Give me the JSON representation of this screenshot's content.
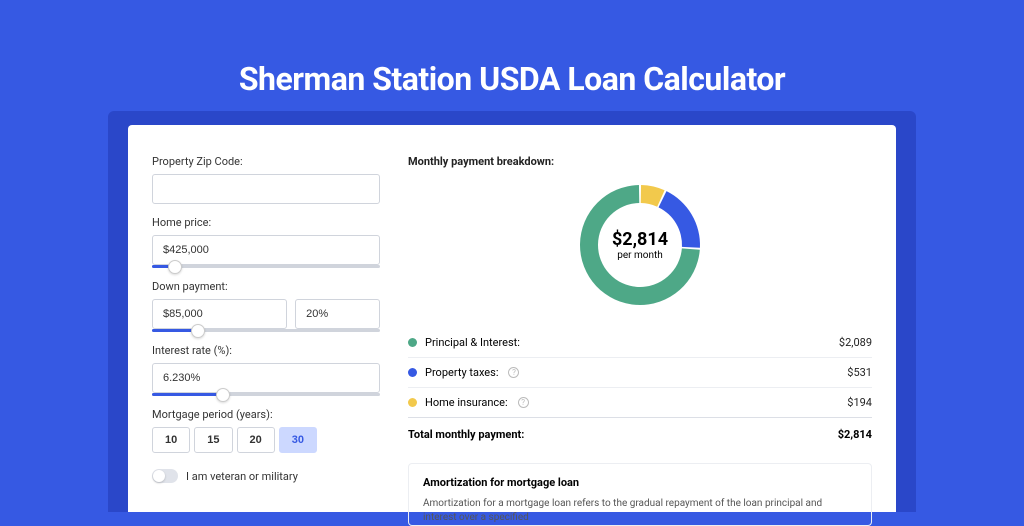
{
  "colors": {
    "page_bg": "#3659E3",
    "card_bg": "#ffffff",
    "shadow_bg": "#2a47c9",
    "border": "#d0d4dc",
    "slider_fill": "#3659E3",
    "active_btn_bg": "#ccd8ff",
    "active_btn_text": "#3659E3",
    "series_principal": "#4ea887",
    "series_taxes": "#3659E3",
    "series_insurance": "#f2c94c"
  },
  "title": "Sherman Station USDA Loan Calculator",
  "form": {
    "zip": {
      "label": "Property Zip Code:",
      "value": ""
    },
    "home_price": {
      "label": "Home price:",
      "value": "$425,000",
      "slider_pct": 10
    },
    "down_payment": {
      "label": "Down payment:",
      "value": "$85,000",
      "pct_value": "20%",
      "slider_pct": 20
    },
    "interest_rate": {
      "label": "Interest rate (%):",
      "value": "6.230%",
      "slider_pct": 31
    },
    "mortgage_period": {
      "label": "Mortgage period (years):",
      "options": [
        "10",
        "15",
        "20",
        "30"
      ],
      "active_index": 3
    },
    "veteran": {
      "label": "I am veteran or military",
      "on": false
    }
  },
  "breakdown": {
    "heading": "Monthly payment breakdown:",
    "donut": {
      "amount": "$2,814",
      "sub": "per month",
      "slices": [
        {
          "key": "insurance",
          "pct": 7,
          "color": "#f2c94c"
        },
        {
          "key": "taxes",
          "pct": 19,
          "color": "#3659E3"
        },
        {
          "key": "principal",
          "pct": 74,
          "color": "#4ea887"
        }
      ],
      "gap_deg": 2
    },
    "rows": [
      {
        "label": "Principal & Interest:",
        "value": "$2,089",
        "color": "#4ea887",
        "info": false
      },
      {
        "label": "Property taxes:",
        "value": "$531",
        "color": "#3659E3",
        "info": true
      },
      {
        "label": "Home insurance:",
        "value": "$194",
        "color": "#f2c94c",
        "info": true
      }
    ],
    "total": {
      "label": "Total monthly payment:",
      "value": "$2,814"
    }
  },
  "amortization": {
    "title": "Amortization for mortgage loan",
    "text": "Amortization for a mortgage loan refers to the gradual repayment of the loan principal and interest over a specified"
  }
}
